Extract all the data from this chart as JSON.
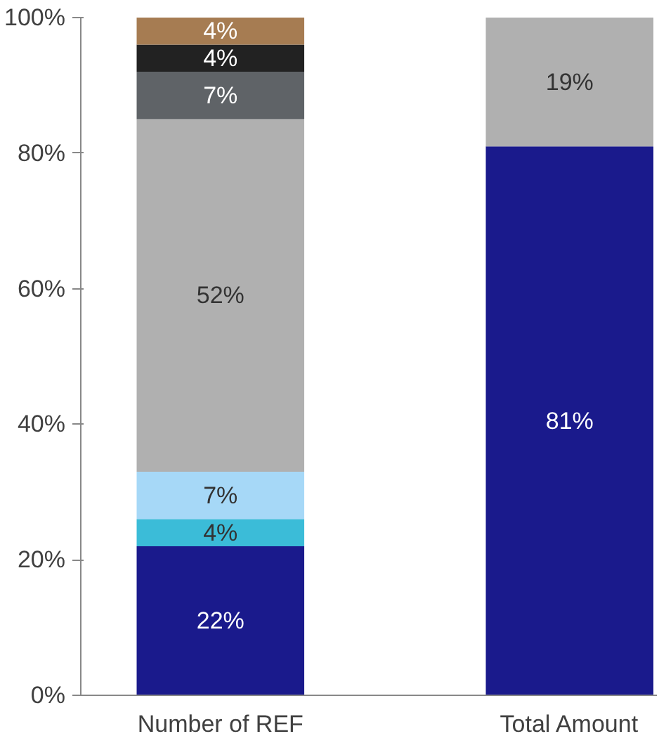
{
  "chart_data": {
    "type": "bar",
    "stacked": true,
    "categories": [
      "Number of REF",
      "Total Amount"
    ],
    "series": [
      {
        "color": "#1a1a8c",
        "values": [
          22,
          81
        ],
        "value_labels": [
          "22%",
          "81%"
        ]
      },
      {
        "color": "#3bbcd8",
        "values": [
          4,
          null
        ],
        "value_labels": [
          "4%",
          null
        ]
      },
      {
        "color": "#a6d8f7",
        "values": [
          7,
          null
        ],
        "value_labels": [
          "7%",
          null
        ]
      },
      {
        "color": "#b0b0b0",
        "values": [
          52,
          19
        ],
        "value_labels": [
          "52%",
          "19%"
        ]
      },
      {
        "color": "#5f6367",
        "values": [
          7,
          null
        ],
        "value_labels": [
          "7%",
          null
        ]
      },
      {
        "color": "#222222",
        "values": [
          4,
          null
        ],
        "value_labels": [
          "4%",
          null
        ]
      },
      {
        "color": "#a67c52",
        "values": [
          4,
          null
        ],
        "value_labels": [
          "4%",
          null
        ]
      }
    ],
    "ylim": [
      0,
      100
    ],
    "yticks": [
      {
        "value": 0,
        "label": "0%"
      },
      {
        "value": 20,
        "label": "20%"
      },
      {
        "value": 40,
        "label": "40%"
      },
      {
        "value": 60,
        "label": "60%"
      },
      {
        "value": 80,
        "label": "80%"
      },
      {
        "value": 100,
        "label": "100%"
      }
    ],
    "grid": false
  }
}
